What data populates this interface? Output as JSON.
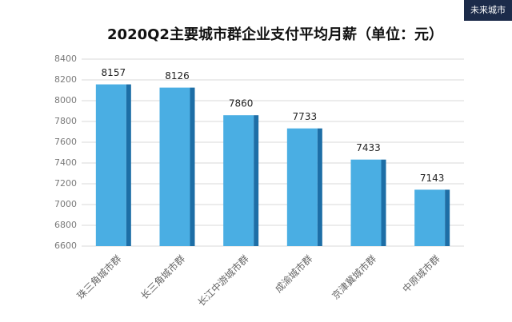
{
  "chart_data": {
    "type": "bar",
    "title": "2020Q2主要城市群企业支付平均月薪（单位：元）",
    "watermark": "未来城市",
    "categories": [
      "珠三角城市群",
      "长三角城市群",
      "长江中游城市群",
      "成渝城市群",
      "京津冀城市群",
      "中原城市群"
    ],
    "values": [
      8157,
      8126,
      7860,
      7733,
      7433,
      7143
    ],
    "color": "#4aaee3",
    "side_color": "#1d6ea6",
    "ylim": [
      6600,
      8400
    ],
    "yticks": [
      6600,
      6800,
      7000,
      7200,
      7400,
      7600,
      7800,
      8000,
      8200,
      8400
    ],
    "grid": true
  }
}
